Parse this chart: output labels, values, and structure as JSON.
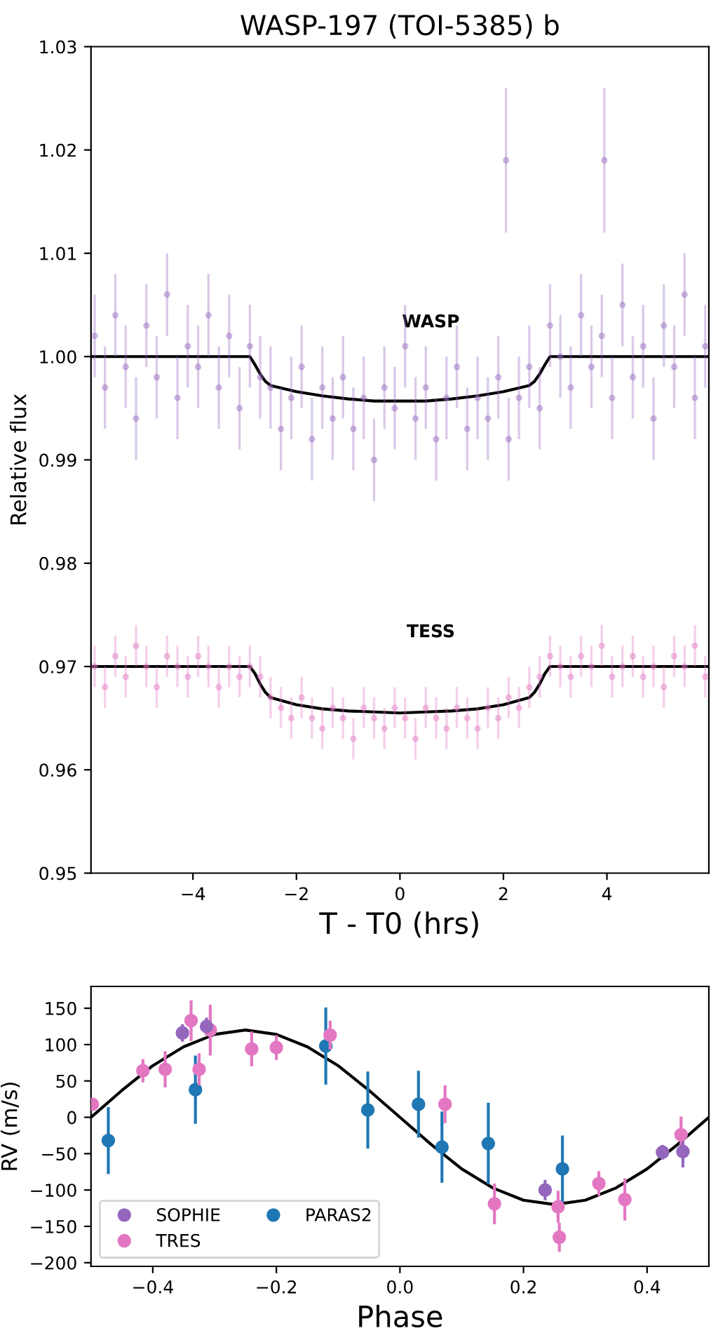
{
  "chart_data": [
    {
      "type": "scatter",
      "title": "WASP-197 (TOI-5385) b",
      "xlabel": "T - T0 (hrs)",
      "ylabel": "Relative flux",
      "xlim": [
        -5.97,
        5.97
      ],
      "xticks": [
        {
          "value": -4,
          "label": "−4"
        },
        {
          "value": -2,
          "label": "−2"
        },
        0,
        2,
        4
      ],
      "ylim": [
        0.95,
        1.03
      ],
      "yticks": [
        {
          "value": 0.95,
          "label": "0.95"
        },
        {
          "value": 0.96,
          "label": "0.96"
        },
        {
          "value": 0.97,
          "label": "0.97"
        },
        {
          "value": 0.98,
          "label": "0.98"
        },
        {
          "value": 0.99,
          "label": "0.99"
        },
        {
          "value": 1.0,
          "label": "1.00"
        },
        {
          "value": 1.01,
          "label": "1.01"
        },
        {
          "value": 1.02,
          "label": "1.02"
        },
        {
          "value": 1.03,
          "label": "1.03"
        }
      ],
      "grid": false,
      "annotations": [
        "WASP",
        "TESS"
      ],
      "series": [
        {
          "marker": "circle",
          "color": "#9467bd",
          "x": [
            -5.9,
            -5.7,
            -5.5,
            -5.3,
            -5.1,
            -4.9,
            -4.7,
            -4.5,
            -4.3,
            -4.1,
            -3.9,
            -3.7,
            -3.5,
            -3.3,
            -3.1,
            -2.9,
            -2.7,
            -2.5,
            -2.3,
            -2.1,
            -1.9,
            -1.7,
            -1.5,
            -1.3,
            -1.1,
            -0.9,
            -0.7,
            -0.5,
            -0.3,
            -0.1,
            0.1,
            0.3,
            0.5,
            0.7,
            0.9,
            1.1,
            1.3,
            1.5,
            1.7,
            1.9,
            2.1,
            2.3,
            2.5,
            2.7,
            2.9,
            3.1,
            3.3,
            3.5,
            3.7,
            3.9,
            4.1,
            4.3,
            4.5,
            4.7,
            4.9,
            5.1,
            5.3,
            5.5,
            5.7,
            5.9,
            2.05,
            3.95
          ],
          "values": [
            1.002,
            0.997,
            1.004,
            0.999,
            0.994,
            1.003,
            0.998,
            1.006,
            0.996,
            1.001,
            0.999,
            1.004,
            0.997,
            1.002,
            0.995,
            1.001,
            0.998,
            0.997,
            0.993,
            0.996,
            0.999,
            0.992,
            0.997,
            0.994,
            0.998,
            0.993,
            0.996,
            0.99,
            0.997,
            0.995,
            1.001,
            0.994,
            0.997,
            0.992,
            0.996,
            0.999,
            0.993,
            0.996,
            0.994,
            0.998,
            0.992,
            0.996,
            0.999,
            0.995,
            1.003,
            1.0,
            0.997,
            1.004,
            0.999,
            1.002,
            0.996,
            1.005,
            0.998,
            1.001,
            0.994,
            1.003,
            0.999,
            1.006,
            0.996,
            1.001,
            1.019,
            1.019
          ],
          "errors": [
            0.004,
            0.004,
            0.004,
            0.004,
            0.004,
            0.004,
            0.004,
            0.004,
            0.004,
            0.004,
            0.004,
            0.004,
            0.004,
            0.004,
            0.004,
            0.004,
            0.004,
            0.004,
            0.004,
            0.004,
            0.004,
            0.004,
            0.004,
            0.004,
            0.004,
            0.004,
            0.004,
            0.004,
            0.004,
            0.004,
            0.004,
            0.004,
            0.004,
            0.004,
            0.004,
            0.004,
            0.004,
            0.004,
            0.004,
            0.004,
            0.004,
            0.004,
            0.004,
            0.004,
            0.004,
            0.004,
            0.004,
            0.004,
            0.004,
            0.004,
            0.004,
            0.004,
            0.004,
            0.004,
            0.004,
            0.004,
            0.004,
            0.004,
            0.004,
            0.004,
            0.007,
            0.007
          ]
        },
        {
          "marker": "circle",
          "color": "#e377c2",
          "x": [
            -5.9,
            -5.7,
            -5.5,
            -5.3,
            -5.1,
            -4.9,
            -4.7,
            -4.5,
            -4.3,
            -4.1,
            -3.9,
            -3.7,
            -3.5,
            -3.3,
            -3.1,
            -2.9,
            -2.7,
            -2.5,
            -2.3,
            -2.1,
            -1.9,
            -1.7,
            -1.5,
            -1.3,
            -1.1,
            -0.9,
            -0.7,
            -0.5,
            -0.3,
            -0.1,
            0.1,
            0.3,
            0.5,
            0.7,
            0.9,
            1.1,
            1.3,
            1.5,
            1.7,
            1.9,
            2.1,
            2.3,
            2.5,
            2.7,
            2.9,
            3.1,
            3.3,
            3.5,
            3.7,
            3.9,
            4.1,
            4.3,
            4.5,
            4.7,
            4.9,
            5.1,
            5.3,
            5.5,
            5.7,
            5.9
          ],
          "values": [
            0.97,
            0.968,
            0.971,
            0.969,
            0.972,
            0.97,
            0.968,
            0.971,
            0.97,
            0.969,
            0.971,
            0.97,
            0.968,
            0.97,
            0.969,
            0.97,
            0.969,
            0.967,
            0.966,
            0.965,
            0.967,
            0.965,
            0.964,
            0.966,
            0.965,
            0.963,
            0.966,
            0.965,
            0.964,
            0.966,
            0.965,
            0.963,
            0.966,
            0.965,
            0.964,
            0.966,
            0.965,
            0.964,
            0.966,
            0.965,
            0.967,
            0.966,
            0.968,
            0.969,
            0.971,
            0.97,
            0.969,
            0.971,
            0.97,
            0.972,
            0.969,
            0.97,
            0.971,
            0.969,
            0.97,
            0.968,
            0.971,
            0.97,
            0.972,
            0.969
          ],
          "errors": [
            0.002,
            0.002,
            0.002,
            0.002,
            0.002,
            0.002,
            0.002,
            0.002,
            0.002,
            0.002,
            0.002,
            0.002,
            0.002,
            0.002,
            0.002,
            0.002,
            0.002,
            0.002,
            0.002,
            0.002,
            0.002,
            0.002,
            0.002,
            0.002,
            0.002,
            0.002,
            0.002,
            0.002,
            0.002,
            0.002,
            0.002,
            0.002,
            0.002,
            0.002,
            0.002,
            0.002,
            0.002,
            0.002,
            0.002,
            0.002,
            0.002,
            0.002,
            0.002,
            0.002,
            0.002,
            0.002,
            0.002,
            0.002,
            0.002,
            0.002,
            0.002,
            0.002,
            0.002,
            0.002,
            0.002,
            0.002,
            0.002,
            0.002,
            0.002,
            0.002
          ]
        },
        {
          "type": "line",
          "color": "#000000",
          "x": [
            -5.97,
            -2.9,
            -2.8,
            -2.7,
            -2.6,
            -2.5,
            -2.0,
            -1.5,
            -1.0,
            -0.5,
            0,
            0.5,
            1.0,
            1.5,
            2.0,
            2.5,
            2.6,
            2.7,
            2.8,
            2.9,
            5.97
          ],
          "values": [
            1.0,
            1.0,
            0.9992,
            0.9983,
            0.9976,
            0.9972,
            0.9966,
            0.9962,
            0.9959,
            0.9957,
            0.9957,
            0.9957,
            0.9959,
            0.9962,
            0.9966,
            0.9972,
            0.9976,
            0.9983,
            0.9992,
            1.0,
            1.0
          ]
        },
        {
          "type": "line",
          "color": "#000000",
          "x": [
            -5.97,
            -2.9,
            -2.8,
            -2.7,
            -2.6,
            -2.5,
            -2.0,
            -1.5,
            -1.0,
            -0.5,
            0,
            0.5,
            1.0,
            1.5,
            2.0,
            2.5,
            2.6,
            2.7,
            2.8,
            2.9,
            5.97
          ],
          "values": [
            0.97,
            0.97,
            0.9693,
            0.9683,
            0.9675,
            0.967,
            0.9663,
            0.9659,
            0.9657,
            0.9656,
            0.9655,
            0.9656,
            0.9657,
            0.9659,
            0.9663,
            0.967,
            0.9675,
            0.9683,
            0.9693,
            0.97,
            0.97
          ]
        }
      ]
    },
    {
      "type": "scatter",
      "xlabel": "Phase",
      "ylabel": "RV (m/s)",
      "xlim": [
        -0.5,
        0.5
      ],
      "xticks": [
        {
          "value": -0.4,
          "label": "−0.4"
        },
        {
          "value": -0.2,
          "label": "−0.2"
        },
        {
          "value": 0.0,
          "label": "0.0"
        },
        0.2,
        0.4
      ],
      "ylim": [
        -205,
        180
      ],
      "yticks": [
        {
          "value": -200,
          "label": "−200"
        },
        {
          "value": -150,
          "label": "−150"
        },
        {
          "value": -100,
          "label": "−100"
        },
        {
          "value": -50,
          "label": "−50"
        },
        0,
        50,
        100,
        150
      ],
      "grid": false,
      "legend": "bottom left",
      "series": [
        {
          "marker": "circle",
          "name": "SOPHIE",
          "color": "#9467bd",
          "x": [
            -0.352,
            -0.313,
            0.235,
            0.425,
            0.458
          ],
          "values": [
            116,
            125,
            -100,
            -48,
            -47
          ],
          "errors": [
            12,
            12,
            14,
            10,
            22
          ]
        },
        {
          "marker": "circle",
          "name": "TRES",
          "color": "#e377c2",
          "x": [
            -0.498,
            -0.416,
            -0.38,
            -0.338,
            -0.325,
            -0.307,
            -0.24,
            -0.2,
            -0.113,
            0.073,
            0.153,
            0.256,
            0.258,
            0.322,
            0.364,
            0.455
          ],
          "values": [
            18,
            64,
            66,
            133,
            66,
            120,
            94,
            96,
            113,
            18,
            -119,
            -123,
            -165,
            -91,
            -113,
            -24
          ],
          "errors": [
            null,
            16,
            25,
            28,
            22,
            35,
            24,
            17,
            20,
            26,
            28,
            22,
            20,
            17,
            29,
            25
          ]
        },
        {
          "marker": "circle",
          "name": "PARAS2",
          "color": "#1f77b4",
          "x": [
            -0.472,
            -0.331,
            -0.12,
            -0.052,
            0.03,
            0.068,
            0.143,
            0.263
          ],
          "values": [
            -32,
            38,
            98,
            10,
            18,
            -41,
            -36,
            -71
          ],
          "errors": [
            46,
            47,
            53,
            53,
            46,
            49,
            56,
            46
          ]
        },
        {
          "type": "line",
          "color": "#000000",
          "x": [
            -0.5,
            -0.45,
            -0.4,
            -0.35,
            -0.3,
            -0.25,
            -0.2,
            -0.15,
            -0.1,
            -0.05,
            0,
            0.05,
            0.1,
            0.15,
            0.2,
            0.25,
            0.3,
            0.35,
            0.4,
            0.45,
            0.5
          ],
          "values": [
            0,
            37,
            71,
            97,
            114,
            120,
            114,
            97,
            71,
            37,
            0,
            -37,
            -71,
            -97,
            -114,
            -120,
            -114,
            -97,
            -71,
            -37,
            0
          ]
        }
      ]
    }
  ]
}
